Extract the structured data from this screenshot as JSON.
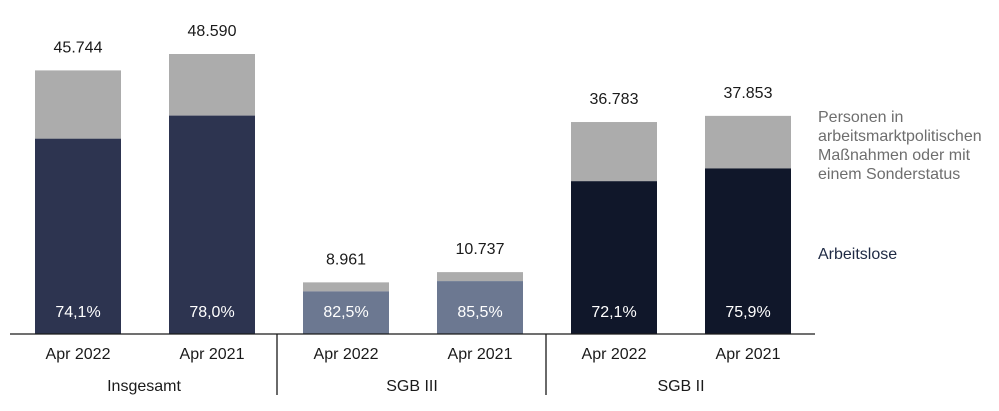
{
  "chart_data": {
    "type": "bar",
    "stacked": true,
    "ylim": [
      0,
      55000
    ],
    "groups": [
      {
        "name": "Insgesamt",
        "bars": [
          {
            "label": "Apr 2022",
            "total": 45744,
            "total_label": "45.744",
            "share": 74.1,
            "share_label": "74,1%"
          },
          {
            "label": "Apr 2021",
            "total": 48590,
            "total_label": "48.590",
            "share": 78.0,
            "share_label": "78,0%"
          }
        ]
      },
      {
        "name": "SGB III",
        "bars": [
          {
            "label": "Apr 2022",
            "total": 8961,
            "total_label": "8.961",
            "share": 82.5,
            "share_label": "82,5%"
          },
          {
            "label": "Apr 2021",
            "total": 10737,
            "total_label": "10.737",
            "share": 85.5,
            "share_label": "85,5%"
          }
        ]
      },
      {
        "name": "SGB II",
        "bars": [
          {
            "label": "Apr 2022",
            "total": 36783,
            "total_label": "36.783",
            "share": 72.1,
            "share_label": "72,1%"
          },
          {
            "label": "Apr 2021",
            "total": 37853,
            "total_label": "37.853",
            "share": 75.9,
            "share_label": "75,9%"
          }
        ]
      }
    ],
    "legend": {
      "top": "Personen in arbeitsmarktpolitischen Maßnahmen oder mit einem Sonderstatus",
      "top_lines": [
        "Personen in",
        "arbeitsmarktpolitischen",
        "Maßnahmen oder mit",
        "einem Sonderstatus"
      ],
      "bottom": "Arbeitslose"
    },
    "colors": {
      "top_segment": "#acacac",
      "groups_bottom": [
        "#2d3450",
        "#6c7891",
        "#10172a"
      ],
      "axis": "#1a1a1a"
    }
  }
}
